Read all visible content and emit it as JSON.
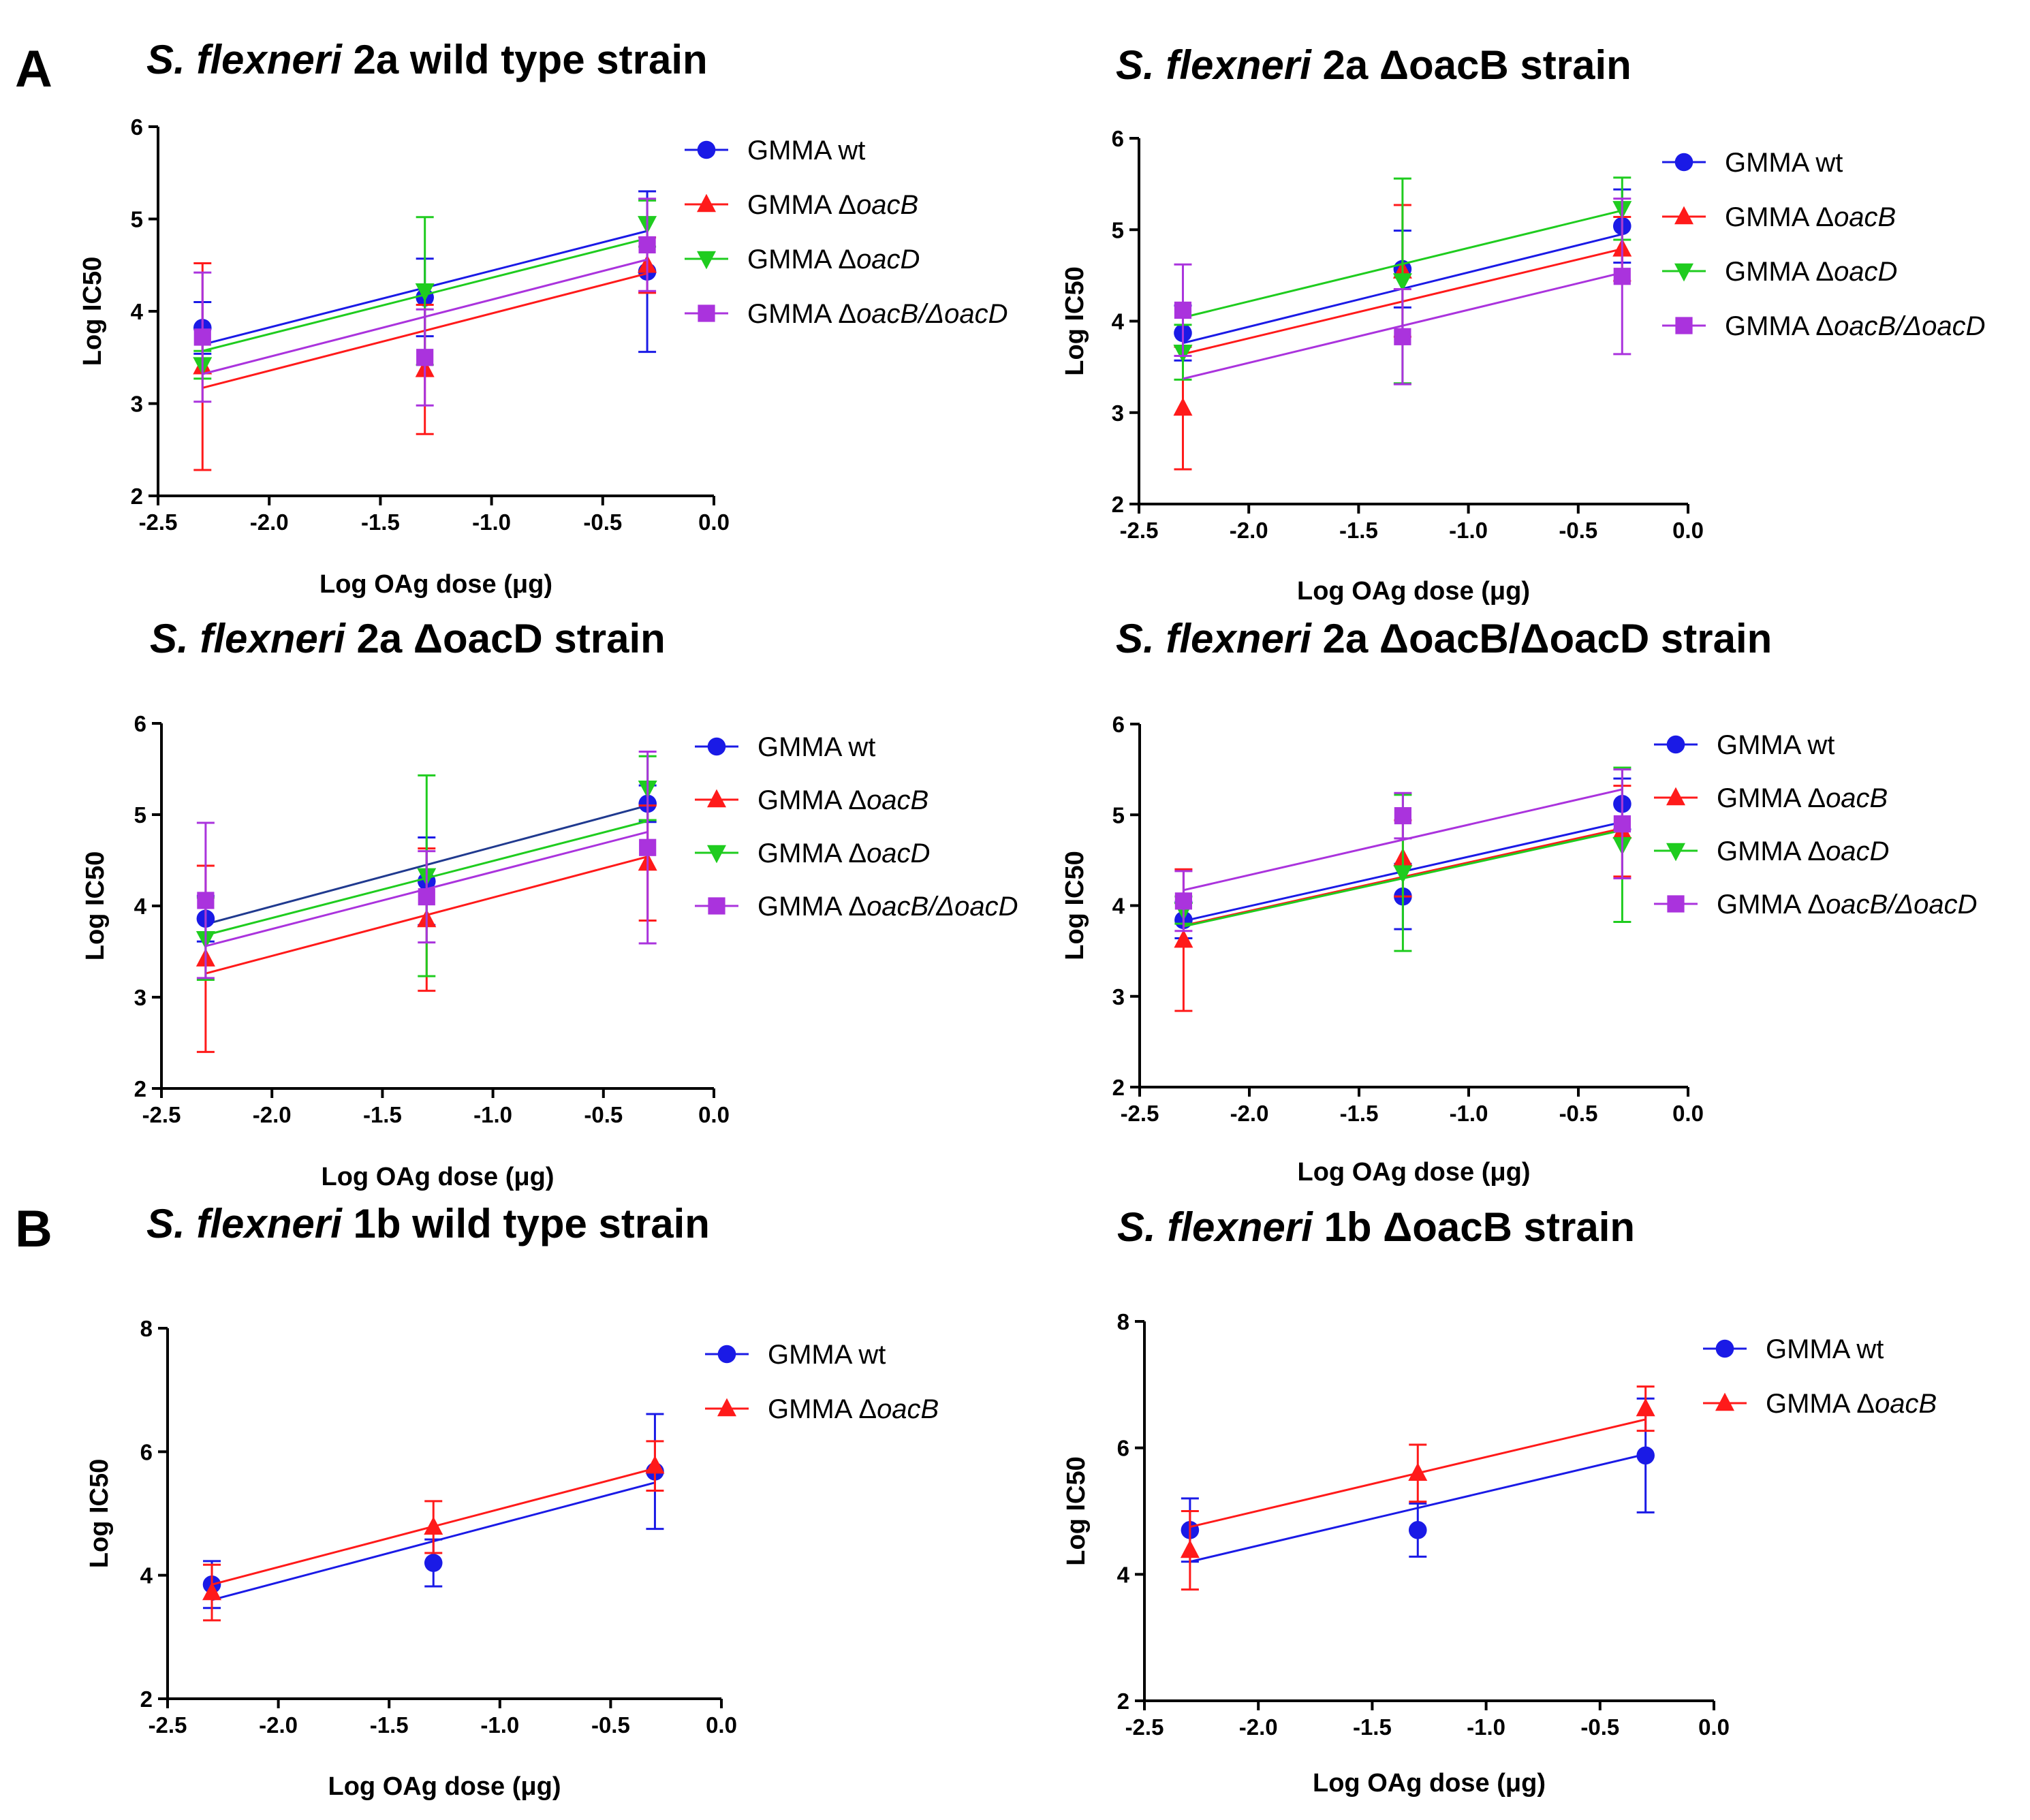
{
  "figure": {
    "panel_a_letter": "A",
    "panel_b_letter": "B"
  },
  "colors": {
    "GMMA wt": "#1a1ae6",
    "GMMA ΔoacB": "#ff1a1a",
    "GMMA ΔoacD": "#1fcc1f",
    "GMMA ΔoacB/ΔoacD": "#aa33dd",
    "wt_line_in_d": "#203a8f"
  },
  "chart_data": [
    {
      "type": "scatter",
      "title_prefix": "S. flexneri",
      "title_rest": " 2a wild type strain",
      "xlabel": "Log OAg dose (μg)",
      "ylabel": "Log IC50",
      "xlim": [
        -2.5,
        0.0
      ],
      "ylim": [
        2,
        6
      ],
      "xticks": [
        "-2.5",
        "-2.0",
        "-1.5",
        "-1.0",
        "-0.5",
        "0.0"
      ],
      "yticks": [
        "2",
        "3",
        "4",
        "5",
        "6"
      ],
      "x": [
        -2.3,
        -1.3,
        -0.3
      ],
      "series": [
        {
          "name": "GMMA wt",
          "label_main": "GMMA ",
          "label_italic": "wt",
          "marker": "circle",
          "values": [
            3.82,
            4.15,
            4.43
          ],
          "errors": [
            0.28,
            0.42,
            0.87
          ],
          "fit": [
            3.64,
            4.87
          ]
        },
        {
          "name": "GMMA ΔoacB",
          "label_main": "GMMA Δ",
          "label_italic": "oacB",
          "marker": "triangle-up",
          "values": [
            3.4,
            3.37,
            4.5
          ],
          "errors": [
            1.12,
            0.7,
            0.3
          ],
          "fit": [
            3.17,
            4.41
          ]
        },
        {
          "name": "GMMA ΔoacD",
          "label_main": "GMMA Δ",
          "label_italic": "oacD",
          "marker": "triangle-down",
          "values": [
            3.42,
            4.22,
            4.95
          ],
          "errors": [
            0.15,
            0.8,
            0.25
          ],
          "fit": [
            3.57,
            4.79
          ]
        },
        {
          "name": "GMMA ΔoacB/ΔoacD",
          "label_main": "GMMA Δ",
          "label_italic": "oacB/ΔoacD",
          "marker": "square",
          "values": [
            3.72,
            3.5,
            4.72
          ],
          "errors": [
            0.7,
            0.52,
            0.5
          ],
          "fit": [
            3.32,
            4.56
          ]
        }
      ]
    },
    {
      "type": "scatter",
      "title_prefix": "S. flexneri",
      "title_rest": " 2a ΔoacB strain",
      "xlabel": "Log OAg dose (μg)",
      "ylabel": "Log IC50",
      "xlim": [
        -2.5,
        0.0
      ],
      "ylim": [
        2,
        6
      ],
      "xticks": [
        "-2.5",
        "-2.0",
        "-1.5",
        "-1.0",
        "-0.5",
        "0.0"
      ],
      "yticks": [
        "2",
        "3",
        "4",
        "5",
        "6"
      ],
      "x": [
        -2.3,
        -1.3,
        -0.3
      ],
      "series": [
        {
          "name": "GMMA wt",
          "label_main": "GMMA ",
          "label_italic": "wt",
          "marker": "circle",
          "values": [
            3.87,
            4.57,
            5.04
          ],
          "errors": [
            0.3,
            0.42,
            0.4
          ],
          "fit": [
            3.76,
            4.95
          ]
        },
        {
          "name": "GMMA ΔoacB",
          "label_main": "GMMA Δ",
          "label_italic": "oacB",
          "marker": "triangle-up",
          "values": [
            3.05,
            4.55,
            4.79
          ],
          "errors": [
            0.67,
            0.72,
            0.35
          ],
          "fit": [
            3.64,
            4.79
          ]
        },
        {
          "name": "GMMA ΔoacD",
          "label_main": "GMMA Δ",
          "label_italic": "oacD",
          "marker": "triangle-down",
          "values": [
            3.66,
            4.44,
            5.23
          ],
          "errors": [
            0.3,
            1.12,
            0.34
          ],
          "fit": [
            4.04,
            5.21
          ]
        },
        {
          "name": "GMMA ΔoacB/ΔoacD",
          "label_main": "GMMA Δ",
          "label_italic": "oacB/ΔoacD",
          "marker": "square",
          "values": [
            4.12,
            3.83,
            4.49
          ],
          "errors": [
            0.5,
            0.52,
            0.85
          ],
          "fit": [
            3.37,
            4.53
          ]
        }
      ]
    },
    {
      "type": "scatter",
      "title_prefix": "S. flexneri",
      "title_rest": " 2a ΔoacD strain",
      "xlabel": "Log OAg dose (μg)",
      "ylabel": "Log IC50",
      "xlim": [
        -2.5,
        0.0
      ],
      "ylim": [
        2,
        6
      ],
      "xticks": [
        "-2.5",
        "-2.0",
        "-1.5",
        "-1.0",
        "-0.5",
        "0.0"
      ],
      "yticks": [
        "2",
        "3",
        "4",
        "5",
        "6"
      ],
      "x": [
        -2.3,
        -1.3,
        -0.3
      ],
      "series": [
        {
          "name": "GMMA wt",
          "label_main": "GMMA ",
          "label_italic": "wt",
          "marker": "circle",
          "values": [
            3.86,
            4.27,
            5.12
          ],
          "errors": [
            0.25,
            0.48,
            0.2
          ],
          "fit": [
            3.8,
            5.1
          ],
          "fit_color": "#203a8f"
        },
        {
          "name": "GMMA ΔoacB",
          "label_main": "GMMA Δ",
          "label_italic": "oacB",
          "marker": "triangle-up",
          "values": [
            3.42,
            3.85,
            4.47
          ],
          "errors": [
            1.02,
            0.78,
            0.63
          ],
          "fit": [
            3.26,
            4.54
          ]
        },
        {
          "name": "GMMA ΔoacD",
          "label_main": "GMMA Δ",
          "label_italic": "oacD",
          "marker": "triangle-down",
          "values": [
            3.64,
            4.33,
            5.29
          ],
          "errors": [
            0.45,
            1.1,
            0.35
          ],
          "fit": [
            3.68,
            4.93
          ]
        },
        {
          "name": "GMMA ΔoacB/ΔoacD",
          "label_main": "GMMA Δ",
          "label_italic": "oacB/ΔoacD",
          "marker": "square",
          "values": [
            4.06,
            4.1,
            4.64
          ],
          "errors": [
            0.85,
            0.5,
            1.05
          ],
          "fit": [
            3.56,
            4.81
          ]
        }
      ]
    },
    {
      "type": "scatter",
      "title_prefix": "S. flexneri",
      "title_rest": " 2a ΔoacB/ΔoacD strain",
      "xlabel": "Log OAg dose (μg)",
      "ylabel": "Log IC50",
      "xlim": [
        -2.5,
        0.0
      ],
      "ylim": [
        2,
        6
      ],
      "xticks": [
        "-2.5",
        "-2.0",
        "-1.5",
        "-1.0",
        "-0.5",
        "0.0"
      ],
      "yticks": [
        "2",
        "3",
        "4",
        "5",
        "6"
      ],
      "x": [
        -2.3,
        -1.3,
        -0.3
      ],
      "series": [
        {
          "name": "GMMA wt",
          "label_main": "GMMA ",
          "label_italic": "wt",
          "marker": "circle",
          "values": [
            3.84,
            4.1,
            5.12
          ],
          "errors": [
            0.2,
            0.36,
            0.28
          ],
          "fit": [
            3.83,
            4.92
          ]
        },
        {
          "name": "GMMA ΔoacB",
          "label_main": "GMMA Δ",
          "label_italic": "oacB",
          "marker": "triangle-up",
          "values": [
            3.62,
            4.52,
            4.82
          ],
          "errors": [
            0.78,
            0.42,
            0.5
          ],
          "fit": [
            3.78,
            4.85
          ]
        },
        {
          "name": "GMMA ΔoacD",
          "label_main": "GMMA Δ",
          "label_italic": "oacD",
          "marker": "triangle-down",
          "values": [
            3.95,
            4.36,
            4.67
          ],
          "errors": [
            0.15,
            0.86,
            0.85
          ],
          "fit": [
            3.77,
            4.83
          ]
        },
        {
          "name": "GMMA ΔoacB/ΔoacD",
          "label_main": "GMMA Δ",
          "label_italic": "oacB/ΔoacD",
          "marker": "square",
          "values": [
            4.05,
            4.99,
            4.9
          ],
          "errors": [
            0.33,
            0.25,
            0.6
          ],
          "fit": [
            4.17,
            5.28
          ]
        }
      ]
    },
    {
      "type": "scatter",
      "title_prefix": "S. flexneri",
      "title_rest": " 1b wild type strain",
      "xlabel": "Log OAg dose (μg)",
      "ylabel": "Log IC50",
      "xlim": [
        -2.5,
        0.0
      ],
      "ylim": [
        2,
        8
      ],
      "xticks": [
        "-2.5",
        "-2.0",
        "-1.5",
        "-1.0",
        "-0.5",
        "0.0"
      ],
      "yticks": [
        "2",
        "4",
        "6",
        "8"
      ],
      "x": [
        -2.3,
        -1.3,
        -0.3
      ],
      "series": [
        {
          "name": "GMMA wt",
          "label_main": "GMMA ",
          "label_italic": "wt",
          "marker": "circle",
          "values": [
            3.85,
            4.2,
            5.68
          ],
          "errors": [
            0.38,
            0.38,
            0.93
          ],
          "fit": [
            3.6,
            5.5
          ]
        },
        {
          "name": "GMMA ΔoacB",
          "label_main": "GMMA Δ",
          "label_italic": "oacB",
          "marker": "triangle-up",
          "values": [
            3.72,
            4.78,
            5.77
          ],
          "errors": [
            0.45,
            0.42,
            0.4
          ],
          "fit": [
            3.85,
            5.73
          ]
        }
      ]
    },
    {
      "type": "scatter",
      "title_prefix": "S. flexneri",
      "title_rest": " 1b ΔoacB strain",
      "xlabel": "Log OAg dose (μg)",
      "ylabel": "Log IC50",
      "xlim": [
        -2.5,
        0.0
      ],
      "ylim": [
        2,
        8
      ],
      "xticks": [
        "-2.5",
        "-2.0",
        "-1.5",
        "-1.0",
        "-0.5",
        "0.0"
      ],
      "yticks": [
        "2",
        "4",
        "6",
        "8"
      ],
      "x": [
        -2.3,
        -1.3,
        -0.3
      ],
      "series": [
        {
          "name": "GMMA wt",
          "label_main": "GMMA ",
          "label_italic": "wt",
          "marker": "circle",
          "values": [
            4.7,
            4.7,
            5.88
          ],
          "errors": [
            0.5,
            0.42,
            0.9
          ],
          "fit": [
            4.2,
            5.9
          ]
        },
        {
          "name": "GMMA ΔoacB",
          "label_main": "GMMA Δ",
          "label_italic": "oacB",
          "marker": "triangle-up",
          "values": [
            4.38,
            5.6,
            6.62
          ],
          "errors": [
            0.62,
            0.45,
            0.35
          ],
          "fit": [
            4.75,
            6.45
          ]
        }
      ]
    }
  ]
}
